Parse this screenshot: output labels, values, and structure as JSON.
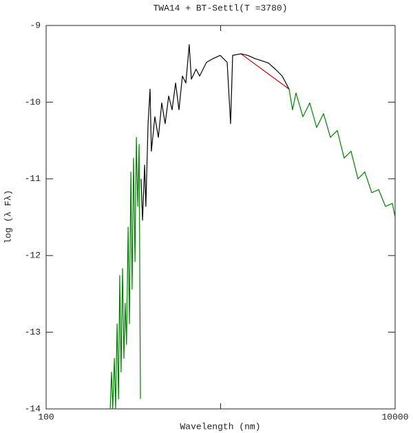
{
  "chart_data": {
    "type": "line",
    "title": "TWA14 + BT-Settl(T =3780)",
    "xlabel": "Wavelength (nm)",
    "ylabel": "log (λ Fλ)",
    "xscale": "log",
    "xlim": [
      100,
      10000
    ],
    "xticks": [
      100,
      10000
    ],
    "xminor_ticks": [
      1000
    ],
    "ylim": [
      -14,
      -9
    ],
    "yticks": [
      -14,
      -13,
      -12,
      -11,
      -10,
      -9
    ],
    "series": [
      {
        "color": "#008000",
        "x": [
          233,
          237,
          241,
          246,
          250,
          255,
          260,
          264,
          269,
          274,
          279,
          284,
          289,
          295,
          300,
          306,
          311,
          317,
          323,
          329,
          335,
          341,
          347
        ],
        "values": [
          -14,
          -13.52,
          -14,
          -13.34,
          -14,
          -12.89,
          -13.87,
          -12.26,
          -13.52,
          -12.17,
          -13.34,
          -12.62,
          -13.16,
          -11.63,
          -12.89,
          -10.91,
          -12.44,
          -10.73,
          -12.08,
          -10.46,
          -11.36,
          -10.55,
          -13.87
        ]
      },
      {
        "color": "#008000",
        "x": [
          2470,
          2584,
          2704,
          2961,
          3242,
          3550,
          3888,
          4258,
          4663,
          5107,
          5592,
          6124,
          6706,
          7344,
          8042,
          8807,
          9643,
          10000
        ],
        "values": [
          -9.83,
          -10.1,
          -9.88,
          -10.19,
          -10.01,
          -10.33,
          -10.15,
          -10.46,
          -10.37,
          -10.73,
          -10.64,
          -11.0,
          -10.91,
          -11.18,
          -11.14,
          -11.36,
          -11.32,
          -11.5
        ]
      },
      {
        "color": "#cc0000",
        "x": [
          1308,
          2470
        ],
        "values": [
          -9.37,
          -9.83
        ]
      },
      {
        "color": "#000000",
        "x": [
          350,
          357,
          367,
          373,
          384,
          394,
          401,
          420,
          440,
          460,
          481,
          504,
          527,
          552,
          577,
          604,
          632,
          661,
          680,
          724,
          758,
          830,
          909,
          995,
          1090,
          1141,
          1172,
          1308,
          1432,
          1568,
          1717,
          1880,
          2059,
          2255,
          2470
        ],
        "values": [
          -11.0,
          -11.54,
          -10.82,
          -11.36,
          -10.28,
          -9.83,
          -10.64,
          -10.19,
          -10.46,
          -10.01,
          -10.28,
          -9.92,
          -10.1,
          -9.75,
          -10.1,
          -9.66,
          -9.75,
          -9.25,
          -9.7,
          -9.57,
          -9.66,
          -9.48,
          -9.43,
          -9.39,
          -9.48,
          -10.28,
          -9.39,
          -9.37,
          -9.39,
          -9.43,
          -9.46,
          -9.49,
          -9.57,
          -9.66,
          -9.83
        ]
      }
    ]
  }
}
